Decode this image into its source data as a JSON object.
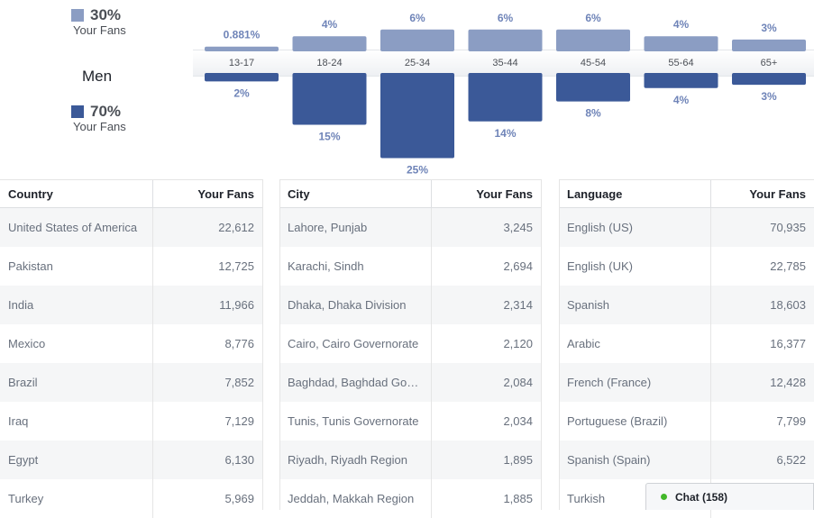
{
  "legend": {
    "top": {
      "pct": "30%",
      "sub": "Your Fans",
      "color": "#8b9dc3"
    },
    "bottom": {
      "pct": "70%",
      "sub": "Your Fans",
      "color": "#3b5998"
    },
    "gender": "Men"
  },
  "chart_data": {
    "type": "bar",
    "categories": [
      "13-17",
      "18-24",
      "25-34",
      "35-44",
      "45-54",
      "55-64",
      "65+"
    ],
    "series": [
      {
        "values": [
          0.881,
          4,
          6,
          6,
          6,
          4,
          3
        ],
        "labels": [
          "0.881%",
          "4%",
          "6%",
          "6%",
          "6%",
          "4%",
          "3%"
        ],
        "color": "#8b9dc3"
      },
      {
        "values": [
          2,
          15,
          25,
          14,
          8,
          4,
          3
        ],
        "labels": [
          "2%",
          "15%",
          "25%",
          "14%",
          "8%",
          "4%",
          "3%"
        ],
        "color": "#3b5998"
      }
    ]
  },
  "tables": {
    "country": {
      "header": [
        "Country",
        "Your Fans"
      ],
      "rows": [
        [
          "United States of America",
          "22,612"
        ],
        [
          "Pakistan",
          "12,725"
        ],
        [
          "India",
          "11,966"
        ],
        [
          "Mexico",
          "8,776"
        ],
        [
          "Brazil",
          "7,852"
        ],
        [
          "Iraq",
          "7,129"
        ],
        [
          "Egypt",
          "6,130"
        ],
        [
          "Turkey",
          "5,969"
        ]
      ]
    },
    "city": {
      "header": [
        "City",
        "Your Fans"
      ],
      "rows": [
        [
          "Lahore, Punjab",
          "3,245"
        ],
        [
          "Karachi, Sindh",
          "2,694"
        ],
        [
          "Dhaka, Dhaka Division",
          "2,314"
        ],
        [
          "Cairo, Cairo Governorate",
          "2,120"
        ],
        [
          "Baghdad, Baghdad Go…",
          "2,084"
        ],
        [
          "Tunis, Tunis Governorate",
          "2,034"
        ],
        [
          "Riyadh, Riyadh Region",
          "1,895"
        ],
        [
          "Jeddah, Makkah Region",
          "1,885"
        ]
      ]
    },
    "language": {
      "header": [
        "Language",
        "Your Fans"
      ],
      "rows": [
        [
          "English (US)",
          "70,935"
        ],
        [
          "English (UK)",
          "22,785"
        ],
        [
          "Spanish",
          "18,603"
        ],
        [
          "Arabic",
          "16,377"
        ],
        [
          "French (France)",
          "12,428"
        ],
        [
          "Portuguese (Brazil)",
          "7,799"
        ],
        [
          "Spanish (Spain)",
          "6,522"
        ],
        [
          "Turkish",
          ""
        ]
      ]
    }
  },
  "chat": {
    "label": "Chat (158)",
    "status_color": "#42b72a"
  }
}
